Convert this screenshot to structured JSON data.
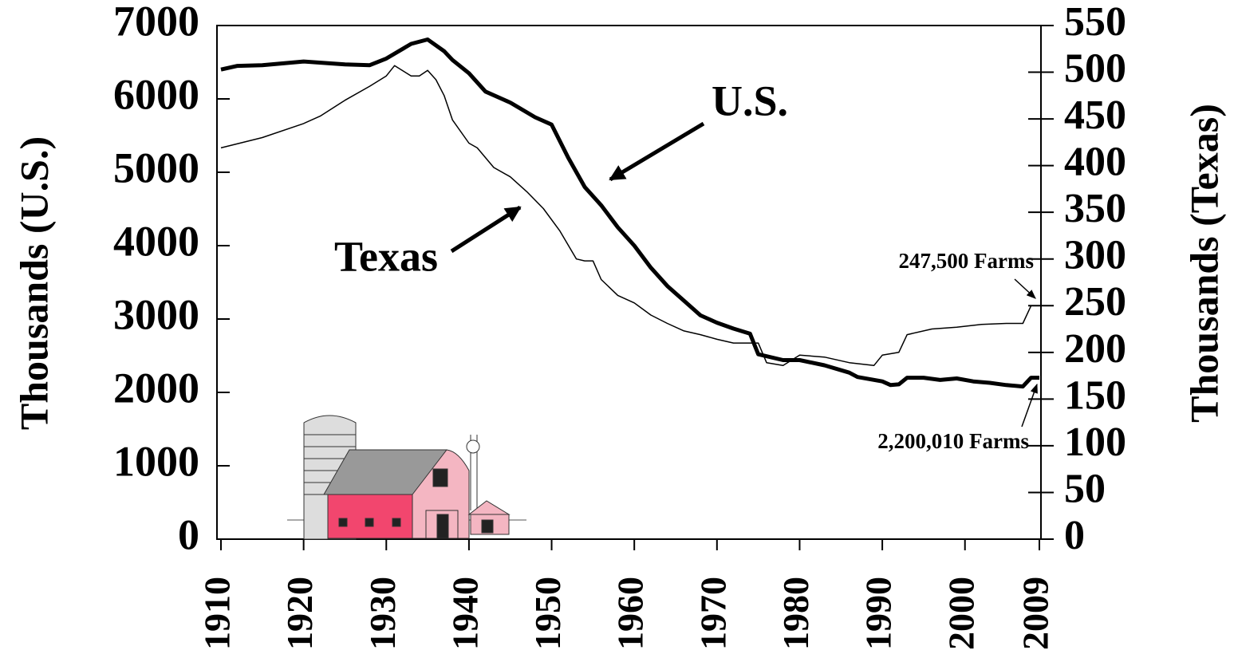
{
  "chart_data": {
    "type": "line",
    "y_label": "Thousands (U.S.)",
    "y2_label": "Thousands (Texas)",
    "xlim": [
      1910,
      2009
    ],
    "xticks": [
      1910,
      1920,
      1930,
      1940,
      1950,
      1960,
      1970,
      1980,
      1990,
      2000,
      2009
    ],
    "ylim": [
      0,
      7000
    ],
    "yticks": [
      0,
      1000,
      2000,
      3000,
      4000,
      5000,
      6000,
      7000
    ],
    "y2lim": [
      0,
      550
    ],
    "y2ticks": [
      0,
      50,
      100,
      150,
      200,
      250,
      300,
      350,
      400,
      450,
      500,
      550
    ],
    "series": [
      {
        "name": "U.S.",
        "color": "#000000",
        "x": [
          1910,
          1912,
          1915,
          1920,
          1925,
          1928,
          1930,
          1933,
          1935,
          1937,
          1938,
          1940,
          1942,
          1945,
          1948,
          1950,
          1952,
          1954,
          1956,
          1958,
          1960,
          1962,
          1964,
          1966,
          1968,
          1970,
          1972,
          1974,
          1975,
          1978,
          1980,
          1983,
          1986,
          1987,
          1990,
          1991,
          1992,
          1993,
          1995,
          1997,
          1999,
          2001,
          2003,
          2005,
          2007,
          2008,
          2009
        ],
        "values": [
          6400,
          6450,
          6460,
          6510,
          6470,
          6460,
          6550,
          6750,
          6810,
          6650,
          6530,
          6350,
          6100,
          5950,
          5750,
          5650,
          5200,
          4800,
          4550,
          4250,
          4000,
          3700,
          3450,
          3250,
          3050,
          2950,
          2870,
          2800,
          2520,
          2440,
          2440,
          2370,
          2270,
          2210,
          2150,
          2100,
          2110,
          2200,
          2200,
          2170,
          2190,
          2150,
          2130,
          2100,
          2080,
          2200,
          2200
        ]
      },
      {
        "name": "Texas",
        "color": "#000000",
        "axis": "y2",
        "x": [
          1910,
          1915,
          1920,
          1922,
          1925,
          1928,
          1930,
          1931,
          1933,
          1934,
          1935,
          1936,
          1937,
          1938,
          1940,
          1941,
          1943,
          1945,
          1947,
          1949,
          1951,
          1953,
          1954,
          1955,
          1956,
          1958,
          1960,
          1962,
          1964,
          1966,
          1968,
          1970,
          1972,
          1975,
          1976,
          1978,
          1980,
          1983,
          1986,
          1989,
          1990,
          1992,
          1993,
          1996,
          1999,
          2002,
          2005,
          2007,
          2008,
          2009
        ],
        "values": [
          419,
          430,
          445,
          453,
          470,
          485,
          496,
          507,
          496,
          496,
          502,
          492,
          475,
          449,
          424,
          419,
          398,
          388,
          372,
          354,
          330,
          300,
          298,
          298,
          278,
          261,
          253,
          240,
          231,
          223,
          219,
          214,
          210,
          210,
          189,
          186,
          197,
          195,
          189,
          186,
          197,
          200,
          219,
          225,
          227,
          230,
          231,
          231,
          250,
          250
        ]
      }
    ],
    "annotations": [
      "247,500 Farms",
      "2,200,010 Farms"
    ]
  }
}
